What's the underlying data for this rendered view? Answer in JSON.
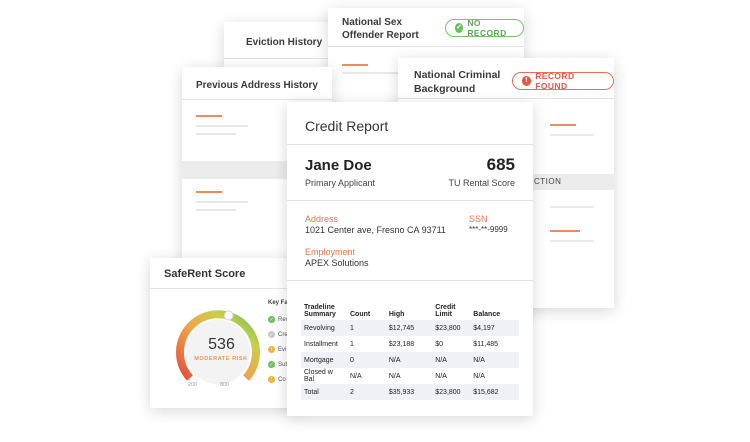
{
  "eviction": {
    "title": "Eviction History"
  },
  "sex_offender": {
    "title_line1": "National Sex",
    "title_line2": "Offender Report",
    "badge": "NO RECORD"
  },
  "criminal": {
    "title_line1": "National Criminal",
    "title_line2": "Background",
    "badge": "RECORD FOUND",
    "band_text": "CTION"
  },
  "previous_address": {
    "title": "Previous Address History"
  },
  "credit_report": {
    "title": "Credit Report",
    "applicant_name": "Jane Doe",
    "applicant_role": "Primary Applicant",
    "score": "685",
    "score_label": "TU Rental Score",
    "address_label": "Address",
    "address_value": "1021 Center ave, Fresno CA 93711",
    "ssn_label": "SSN",
    "ssn_value": "***-**-9999",
    "employment_label": "Employment",
    "employment_value": "APEX Solutions",
    "table": {
      "headers": [
        "Tradeline Summary",
        "Count",
        "High",
        "Credit Limit",
        "Balance"
      ],
      "rows": [
        [
          "Revolving",
          "1",
          "$12,745",
          "$23,800",
          "$4,197"
        ],
        [
          "Installment",
          "1",
          "$23,188",
          "$0",
          "$11,485"
        ],
        [
          "Mortgage",
          "0",
          "N/A",
          "N/A",
          "N/A"
        ],
        [
          "Closed w Bal",
          "N/A",
          "N/A",
          "N/A",
          "N/A"
        ],
        [
          "Total",
          "2",
          "$35,933",
          "$23,800",
          "$15,682"
        ]
      ]
    }
  },
  "saferent": {
    "title": "SafeRent Score",
    "score": "536",
    "risk_label": "MODERATE RISK",
    "gauge_min": "200",
    "gauge_max": "800",
    "gauge_level": 0.56,
    "key_factors_title": "Key Fa",
    "key_factors": [
      {
        "text": "Rev",
        "status": "good"
      },
      {
        "text": "Cre",
        "status": "neutral"
      },
      {
        "text": "Evi",
        "status": "warn"
      },
      {
        "text": "Sub",
        "status": "good"
      },
      {
        "text": "Co",
        "status": "warn"
      }
    ]
  },
  "colors": {
    "accent_orange": "#ef8a5f",
    "good_green": "#6cbf5e",
    "alert_red": "#e25a43",
    "warn_yellow": "#f0b23b"
  }
}
